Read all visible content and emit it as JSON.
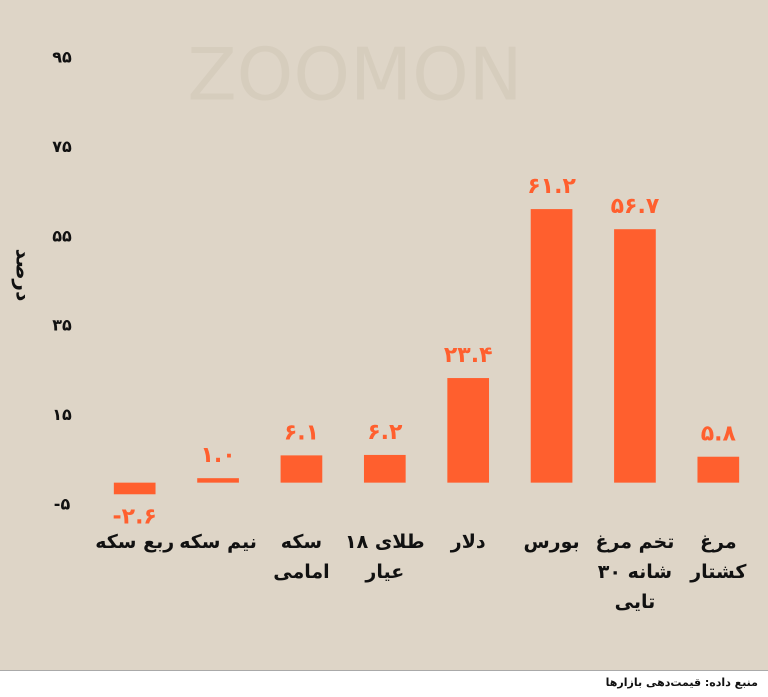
{
  "chart_data": {
    "type": "bar",
    "watermark": "ZOOMON",
    "ylabel": "درصد",
    "categories": [
      "ربع سکه",
      "نیم سکه",
      "سکه امامی",
      "طلای ۱۸ عیار",
      "دلار",
      "بورس",
      "تخم مرغ شانه ۳۰ تایی",
      "مرغ کشتار"
    ],
    "values": [
      -2.6,
      1.0,
      6.1,
      6.2,
      23.4,
      61.2,
      56.7,
      5.8
    ],
    "value_labels": [
      "-۲.۶",
      "۱.۰",
      "۶.۱",
      "۶.۲",
      "۲۳.۴",
      "۶۱.۲",
      "۵۶.۷",
      "۵.۸"
    ],
    "color": "#ff5f2e",
    "ylim": [
      -5,
      95
    ],
    "yticks": [
      {
        "value": -5,
        "label": "-۵"
      },
      {
        "value": 15,
        "label": "۱۵"
      },
      {
        "value": 35,
        "label": "۳۵"
      },
      {
        "value": 55,
        "label": "۵۵"
      },
      {
        "value": 75,
        "label": "۷۵"
      },
      {
        "value": 95,
        "label": "۹۵"
      }
    ],
    "grid": false,
    "source": "منبع داده: قیمت‌دهی بازارها"
  }
}
